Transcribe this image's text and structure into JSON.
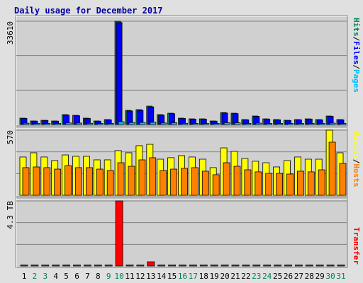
{
  "title": "Daily usage for December 2017",
  "legend_separator": "/",
  "chart_data": [
    {
      "type": "bar",
      "series": [
        {
          "name": "Hits",
          "color": "#00805c",
          "values": [
            2070,
            1150,
            1380,
            1150,
            3220,
            2990,
            2070,
            1150,
            1610,
            33610,
            4600,
            4830,
            5980,
            3220,
            3680,
            2070,
            1840,
            1840,
            1150,
            3910,
            3680,
            1610,
            2760,
            1840,
            1610,
            1380,
            1610,
            1840,
            1610,
            2760,
            1610
          ]
        },
        {
          "name": "Files",
          "color": "#0000ff",
          "values": [
            1980,
            1100,
            1320,
            1100,
            3080,
            2860,
            1980,
            1100,
            1540,
            33200,
            4400,
            4620,
            5720,
            3080,
            3520,
            1980,
            1760,
            1760,
            1100,
            3740,
            3520,
            1540,
            2640,
            1760,
            1540,
            1320,
            1540,
            1760,
            1540,
            2640,
            1540
          ]
        },
        {
          "name": "Pages",
          "color": "#00c0ff",
          "values": [
            420,
            300,
            330,
            290,
            520,
            480,
            400,
            280,
            350,
            900,
            650,
            680,
            720,
            500,
            560,
            380,
            360,
            350,
            260,
            600,
            560,
            340,
            450,
            360,
            330,
            300,
            340,
            360,
            330,
            460,
            330
          ]
        }
      ],
      "ylim": [
        0,
        33610
      ],
      "yticks": [
        33610
      ]
    },
    {
      "type": "bar",
      "series": [
        {
          "name": "Visits",
          "color": "#ffff00",
          "values": [
            335,
            372,
            335,
            304,
            353,
            341,
            341,
            310,
            310,
            391,
            372,
            434,
            446,
            316,
            329,
            347,
            335,
            316,
            242,
            415,
            384,
            322,
            298,
            285,
            248,
            304,
            335,
            316,
            316,
            570,
            372
          ]
        },
        {
          "name": "Hosts",
          "color": "#ff8000",
          "values": [
            242,
            248,
            242,
            229,
            260,
            242,
            242,
            229,
            217,
            285,
            254,
            310,
            329,
            217,
            229,
            236,
            242,
            211,
            180,
            285,
            254,
            223,
            205,
            192,
            192,
            186,
            211,
            205,
            223,
            465,
            279
          ]
        }
      ],
      "ylim": [
        0,
        570
      ],
      "yticks": [
        570
      ]
    },
    {
      "type": "bar",
      "categories": [
        "1",
        "2",
        "3",
        "4",
        "5",
        "6",
        "7",
        "8",
        "9",
        "10",
        "11",
        "12",
        "13",
        "14",
        "15",
        "16",
        "17",
        "18",
        "19",
        "20",
        "21",
        "22",
        "23",
        "24",
        "25",
        "26",
        "27",
        "28",
        "29",
        "30",
        "31"
      ],
      "category_colors": [
        "#000000",
        "#00805c",
        "#00805c",
        "#000000",
        "#000000",
        "#000000",
        "#000000",
        "#000000",
        "#00805c",
        "#00805c",
        "#000000",
        "#000000",
        "#000000",
        "#000000",
        "#000000",
        "#00805c",
        "#00805c",
        "#000000",
        "#000000",
        "#000000",
        "#000000",
        "#000000",
        "#00805c",
        "#00805c",
        "#000000",
        "#000000",
        "#000000",
        "#000000",
        "#000000",
        "#00805c",
        "#00805c"
      ],
      "series": [
        {
          "name": "Transfer",
          "color": "#ff0000",
          "values": [
            0.02,
            0.02,
            0.02,
            0.02,
            0.02,
            0.02,
            0.02,
            0.02,
            0.02,
            4.3,
            0.02,
            0.02,
            0.28,
            0.02,
            0.02,
            0.02,
            0.02,
            0.02,
            0.02,
            0.02,
            0.02,
            0.02,
            0.02,
            0.02,
            0.02,
            0.02,
            0.02,
            0.02,
            0.02,
            0.02,
            0.02
          ]
        }
      ],
      "ylim": [
        0,
        4.3
      ],
      "yticks": [
        {
          "value": 4.3,
          "label": "4.3 TB"
        }
      ]
    }
  ]
}
